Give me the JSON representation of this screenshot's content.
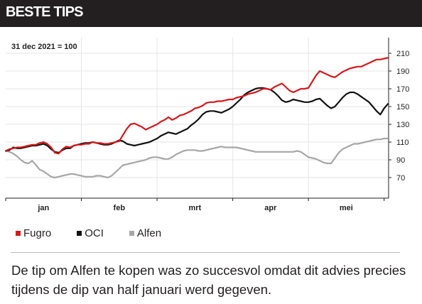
{
  "header": {
    "title": "BESTE TIPS"
  },
  "caption": "De tip om Alfen te kopen was zo succesvol omdat dit advies precies tijdens de dip van half januari werd gegeven.",
  "chart_data": {
    "type": "line",
    "note": "31 dec 2021 = 100",
    "month_labels": [
      "jan",
      "feb",
      "mrt",
      "apr",
      "mei"
    ],
    "y_ticks": [
      70,
      90,
      110,
      130,
      150,
      170,
      190,
      210
    ],
    "ylim": [
      50,
      222
    ],
    "grid": true,
    "legend_placement": "bottom-left",
    "n_days": 102,
    "month_label_positions": [
      10,
      30,
      50,
      70,
      90
    ],
    "series": [
      {
        "name": "Fugro",
        "color": "#d7191c",
        "values": [
          100,
          102,
          103,
          104,
          104,
          105,
          106,
          107,
          107,
          109,
          110,
          108,
          104,
          98,
          97,
          102,
          105,
          104,
          106,
          107,
          107,
          108,
          108,
          110,
          109,
          109,
          108,
          108,
          109,
          110,
          111,
          118,
          125,
          130,
          131,
          129,
          127,
          124,
          126,
          128,
          130,
          133,
          135,
          138,
          135,
          137,
          140,
          141,
          143,
          145,
          148,
          149,
          151,
          154,
          155,
          155,
          156,
          156,
          157,
          158,
          158,
          160,
          161,
          162,
          164,
          165,
          166,
          168,
          170,
          170,
          169,
          172,
          174,
          176,
          172,
          168,
          166,
          168,
          170,
          170,
          171,
          178,
          185,
          190,
          188,
          186,
          184,
          183,
          186,
          189,
          191,
          193,
          194,
          195,
          195,
          197,
          199,
          201,
          203,
          203,
          204,
          205
        ]
      },
      {
        "name": "OCI",
        "color": "#111111",
        "values": [
          100,
          101,
          104,
          103,
          103,
          104,
          105,
          106,
          106,
          107,
          108,
          106,
          102,
          99,
          98,
          101,
          103,
          103,
          106,
          107,
          108,
          109,
          109,
          110,
          109,
          108,
          107,
          107,
          108,
          110,
          112,
          111,
          108,
          107,
          106,
          107,
          108,
          109,
          110,
          112,
          114,
          117,
          119,
          121,
          120,
          119,
          121,
          123,
          125,
          129,
          132,
          136,
          141,
          144,
          145,
          145,
          144,
          143,
          145,
          147,
          150,
          154,
          158,
          163,
          166,
          168,
          170,
          171,
          171,
          170,
          169,
          166,
          162,
          157,
          155,
          156,
          158,
          157,
          156,
          155,
          155,
          156,
          158,
          159,
          155,
          151,
          148,
          150,
          155,
          160,
          164,
          166,
          166,
          164,
          161,
          158,
          155,
          150,
          145,
          141,
          148,
          153
        ]
      },
      {
        "name": "Alfen",
        "color": "#a7a7a7",
        "values": [
          100,
          99,
          97,
          94,
          90,
          87,
          86,
          89,
          84,
          79,
          77,
          74,
          71,
          70,
          71,
          72,
          73,
          74,
          74,
          73,
          72,
          71,
          71,
          71,
          72,
          72,
          71,
          70,
          72,
          76,
          80,
          84,
          85,
          86,
          87,
          88,
          89,
          90,
          92,
          93,
          93,
          92,
          91,
          91,
          93,
          96,
          98,
          100,
          101,
          101,
          101,
          100,
          100,
          101,
          102,
          103,
          104,
          105,
          104,
          104,
          104,
          104,
          103,
          102,
          101,
          100,
          99,
          99,
          99,
          99,
          99,
          99,
          99,
          99,
          99,
          99,
          99,
          100,
          99,
          96,
          93,
          92,
          91,
          89,
          87,
          86,
          86,
          92,
          98,
          102,
          104,
          106,
          108,
          108,
          109,
          110,
          111,
          112,
          113,
          113,
          114,
          114
        ]
      }
    ]
  }
}
